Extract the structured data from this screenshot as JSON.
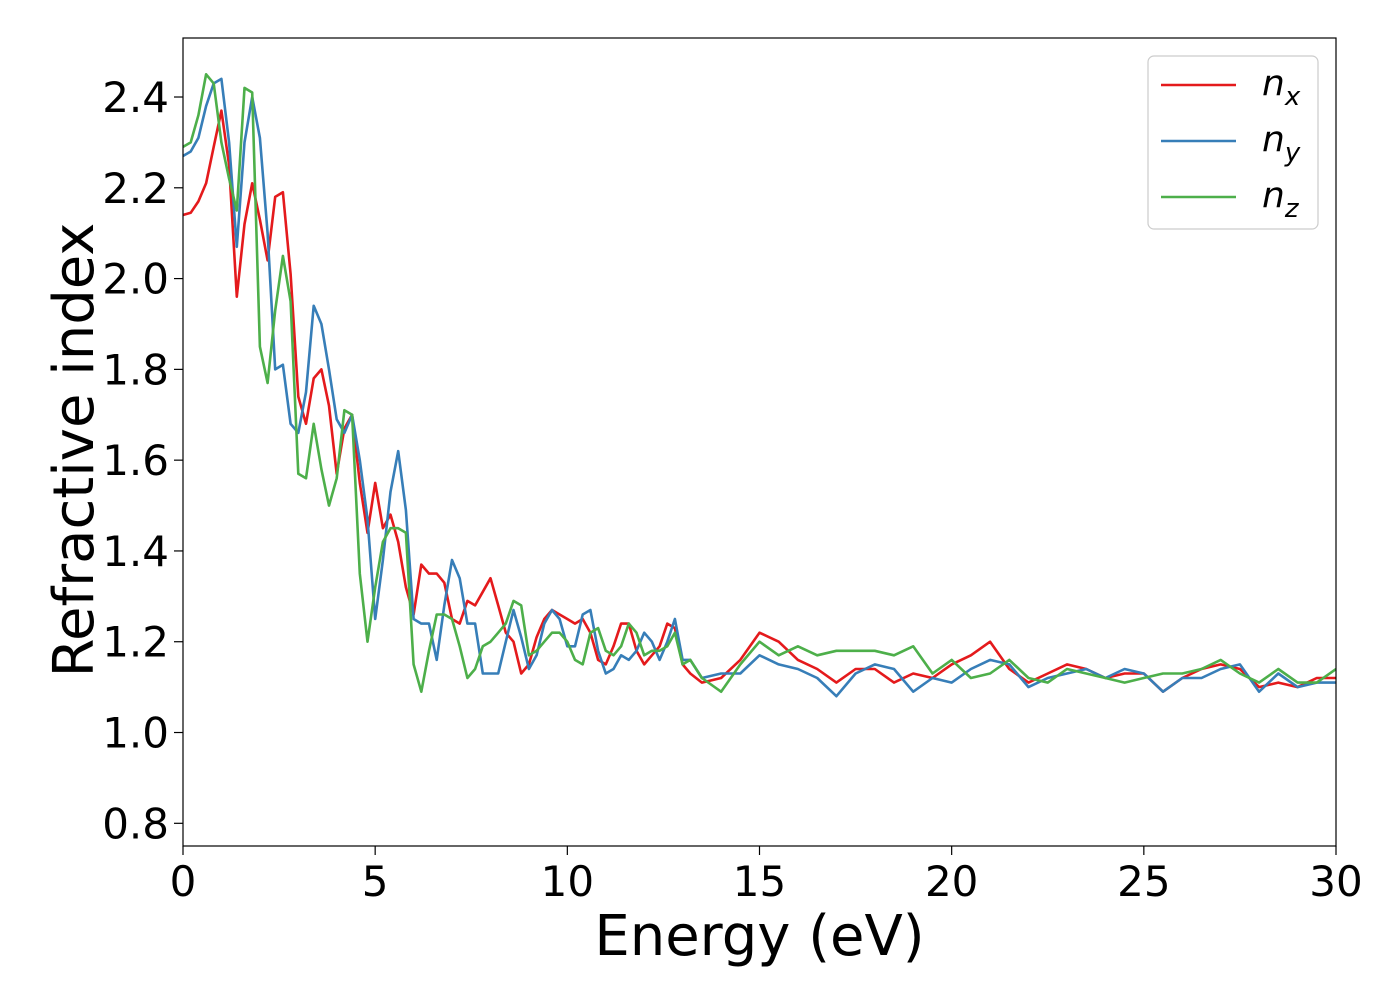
{
  "chart_data": {
    "type": "line",
    "title": "",
    "xlabel": "Energy (eV)",
    "ylabel": "Refractive index",
    "xlim": [
      0,
      30
    ],
    "ylim": [
      0.75,
      2.53
    ],
    "xticks": [
      0,
      5,
      10,
      15,
      20,
      25,
      30
    ],
    "xtick_labels": [
      "0",
      "5",
      "10",
      "15",
      "20",
      "25",
      "30"
    ],
    "yticks": [
      0.8,
      1.0,
      1.2,
      1.4,
      1.6,
      1.8,
      2.0,
      2.2,
      2.4
    ],
    "ytick_labels": [
      "0.8",
      "1.0",
      "1.2",
      "1.4",
      "1.6",
      "1.8",
      "2.0",
      "2.2",
      "2.4"
    ],
    "grid": false,
    "legend_position": "top-right",
    "series": [
      {
        "name": "n",
        "subscript": "x",
        "color": "#e41a1c",
        "x": [
          0,
          0.2,
          0.4,
          0.6,
          0.8,
          1.0,
          1.2,
          1.4,
          1.6,
          1.8,
          2.0,
          2.2,
          2.4,
          2.6,
          2.8,
          3.0,
          3.2,
          3.4,
          3.6,
          3.8,
          4.0,
          4.2,
          4.4,
          4.6,
          4.8,
          5.0,
          5.2,
          5.4,
          5.6,
          5.8,
          6.0,
          6.2,
          6.4,
          6.6,
          6.8,
          7.0,
          7.2,
          7.4,
          7.6,
          7.8,
          8.0,
          8.2,
          8.4,
          8.6,
          8.8,
          9.0,
          9.2,
          9.4,
          9.6,
          9.8,
          10.0,
          10.2,
          10.4,
          10.6,
          10.8,
          11.0,
          11.2,
          11.4,
          11.6,
          11.8,
          12.0,
          12.2,
          12.4,
          12.6,
          12.8,
          13.0,
          13.2,
          13.5,
          14.0,
          14.5,
          15.0,
          15.5,
          16.0,
          16.5,
          17.0,
          17.5,
          18.0,
          18.5,
          19.0,
          19.5,
          20.0,
          20.5,
          21.0,
          21.5,
          22.0,
          22.5,
          23.0,
          23.5,
          24.0,
          24.5,
          25.0,
          25.5,
          26.0,
          26.5,
          27.0,
          27.5,
          28.0,
          28.5,
          29.0,
          29.5,
          30.0
        ],
        "y": [
          2.14,
          2.145,
          2.17,
          2.21,
          2.29,
          2.37,
          2.25,
          1.96,
          2.12,
          2.21,
          2.13,
          2.04,
          2.18,
          2.19,
          2.01,
          1.74,
          1.68,
          1.78,
          1.8,
          1.72,
          1.57,
          1.67,
          1.7,
          1.55,
          1.44,
          1.55,
          1.45,
          1.48,
          1.42,
          1.32,
          1.26,
          1.37,
          1.35,
          1.35,
          1.33,
          1.25,
          1.24,
          1.29,
          1.28,
          1.31,
          1.34,
          1.28,
          1.22,
          1.2,
          1.13,
          1.15,
          1.21,
          1.25,
          1.27,
          1.26,
          1.25,
          1.24,
          1.25,
          1.22,
          1.16,
          1.15,
          1.19,
          1.24,
          1.24,
          1.18,
          1.15,
          1.17,
          1.19,
          1.24,
          1.23,
          1.15,
          1.13,
          1.11,
          1.12,
          1.16,
          1.22,
          1.2,
          1.16,
          1.14,
          1.11,
          1.14,
          1.14,
          1.11,
          1.13,
          1.12,
          1.15,
          1.17,
          1.2,
          1.14,
          1.11,
          1.13,
          1.15,
          1.14,
          1.12,
          1.13,
          1.13,
          1.09,
          1.12,
          1.14,
          1.15,
          1.14,
          1.1,
          1.11,
          1.1,
          1.12,
          1.12
        ]
      },
      {
        "name": "n",
        "subscript": "y",
        "color": "#377eb8",
        "x": [
          0,
          0.2,
          0.4,
          0.6,
          0.8,
          1.0,
          1.2,
          1.4,
          1.6,
          1.8,
          2.0,
          2.2,
          2.4,
          2.6,
          2.8,
          3.0,
          3.2,
          3.4,
          3.6,
          3.8,
          4.0,
          4.2,
          4.4,
          4.6,
          4.8,
          5.0,
          5.2,
          5.4,
          5.6,
          5.8,
          6.0,
          6.2,
          6.4,
          6.6,
          6.8,
          7.0,
          7.2,
          7.4,
          7.6,
          7.8,
          8.0,
          8.2,
          8.4,
          8.6,
          8.8,
          9.0,
          9.2,
          9.4,
          9.6,
          9.8,
          10.0,
          10.2,
          10.4,
          10.6,
          10.8,
          11.0,
          11.2,
          11.4,
          11.6,
          11.8,
          12.0,
          12.2,
          12.4,
          12.6,
          12.8,
          13.0,
          13.2,
          13.5,
          14.0,
          14.5,
          15.0,
          15.5,
          16.0,
          16.5,
          17.0,
          17.5,
          18.0,
          18.5,
          19.0,
          19.5,
          20.0,
          20.5,
          21.0,
          21.5,
          22.0,
          22.5,
          23.0,
          23.5,
          24.0,
          24.5,
          25.0,
          25.5,
          26.0,
          26.5,
          27.0,
          27.5,
          28.0,
          28.5,
          29.0,
          29.5,
          30.0
        ],
        "y": [
          2.27,
          2.28,
          2.31,
          2.38,
          2.43,
          2.44,
          2.3,
          2.07,
          2.3,
          2.4,
          2.31,
          2.1,
          1.8,
          1.81,
          1.68,
          1.66,
          1.75,
          1.94,
          1.9,
          1.8,
          1.69,
          1.66,
          1.7,
          1.6,
          1.47,
          1.25,
          1.38,
          1.53,
          1.62,
          1.49,
          1.25,
          1.24,
          1.24,
          1.16,
          1.28,
          1.38,
          1.34,
          1.24,
          1.24,
          1.13,
          1.13,
          1.13,
          1.2,
          1.27,
          1.21,
          1.14,
          1.17,
          1.24,
          1.27,
          1.25,
          1.19,
          1.19,
          1.26,
          1.27,
          1.18,
          1.13,
          1.14,
          1.17,
          1.16,
          1.18,
          1.22,
          1.2,
          1.16,
          1.2,
          1.25,
          1.16,
          1.16,
          1.12,
          1.13,
          1.13,
          1.17,
          1.15,
          1.14,
          1.12,
          1.08,
          1.13,
          1.15,
          1.14,
          1.09,
          1.12,
          1.11,
          1.14,
          1.16,
          1.15,
          1.1,
          1.12,
          1.13,
          1.14,
          1.12,
          1.14,
          1.13,
          1.09,
          1.12,
          1.12,
          1.14,
          1.15,
          1.09,
          1.13,
          1.1,
          1.11,
          1.11
        ]
      },
      {
        "name": "n",
        "subscript": "z",
        "color": "#4daf4a",
        "x": [
          0,
          0.2,
          0.4,
          0.6,
          0.8,
          1.0,
          1.2,
          1.4,
          1.6,
          1.8,
          2.0,
          2.2,
          2.4,
          2.6,
          2.8,
          3.0,
          3.2,
          3.4,
          3.6,
          3.8,
          4.0,
          4.2,
          4.4,
          4.6,
          4.8,
          5.0,
          5.2,
          5.4,
          5.6,
          5.8,
          6.0,
          6.2,
          6.4,
          6.6,
          6.8,
          7.0,
          7.2,
          7.4,
          7.6,
          7.8,
          8.0,
          8.2,
          8.4,
          8.6,
          8.8,
          9.0,
          9.2,
          9.4,
          9.6,
          9.8,
          10.0,
          10.2,
          10.4,
          10.6,
          10.8,
          11.0,
          11.2,
          11.4,
          11.6,
          11.8,
          12.0,
          12.2,
          12.4,
          12.6,
          12.8,
          13.0,
          13.2,
          13.5,
          14.0,
          14.5,
          15.0,
          15.5,
          16.0,
          16.5,
          17.0,
          17.5,
          18.0,
          18.5,
          19.0,
          19.5,
          20.0,
          20.5,
          21.0,
          21.5,
          22.0,
          22.5,
          23.0,
          23.5,
          24.0,
          24.5,
          25.0,
          25.5,
          26.0,
          26.5,
          27.0,
          27.5,
          28.0,
          28.5,
          29.0,
          29.5,
          30.0
        ],
        "y": [
          2.29,
          2.3,
          2.36,
          2.45,
          2.43,
          2.3,
          2.22,
          2.15,
          2.42,
          2.41,
          1.85,
          1.77,
          1.93,
          2.05,
          1.95,
          1.57,
          1.56,
          1.68,
          1.58,
          1.5,
          1.56,
          1.71,
          1.7,
          1.35,
          1.2,
          1.32,
          1.42,
          1.45,
          1.45,
          1.44,
          1.15,
          1.09,
          1.18,
          1.26,
          1.26,
          1.25,
          1.19,
          1.12,
          1.14,
          1.19,
          1.2,
          1.22,
          1.24,
          1.29,
          1.28,
          1.17,
          1.18,
          1.2,
          1.22,
          1.22,
          1.2,
          1.16,
          1.15,
          1.22,
          1.23,
          1.18,
          1.17,
          1.19,
          1.24,
          1.22,
          1.17,
          1.18,
          1.18,
          1.19,
          1.22,
          1.15,
          1.16,
          1.12,
          1.09,
          1.15,
          1.2,
          1.17,
          1.19,
          1.17,
          1.18,
          1.18,
          1.18,
          1.17,
          1.19,
          1.13,
          1.16,
          1.12,
          1.13,
          1.16,
          1.12,
          1.11,
          1.14,
          1.13,
          1.12,
          1.11,
          1.12,
          1.13,
          1.13,
          1.14,
          1.16,
          1.13,
          1.11,
          1.14,
          1.11,
          1.11,
          1.14
        ]
      }
    ]
  }
}
